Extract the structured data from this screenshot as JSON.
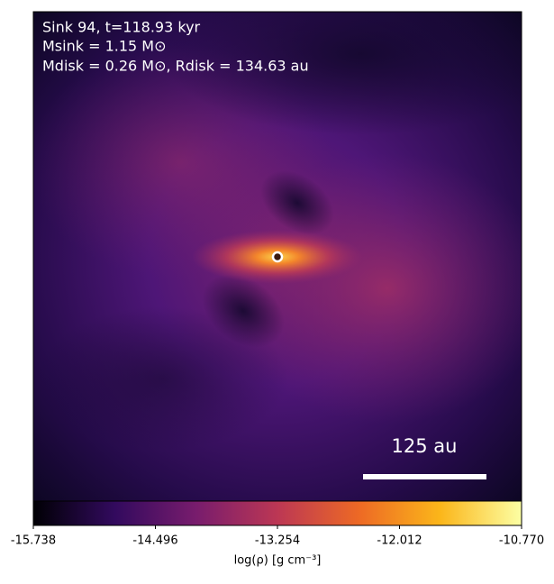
{
  "chart_data": {
    "type": "heatmap",
    "annotations": [
      "Sink 94, t=118.93 kyr",
      "Msink = 1.15 M⊙",
      "Mdisk = 0.26 M⊙, Rdisk = 134.63 au"
    ],
    "scale_bar_label": "125 au",
    "colorbar_label": "log(ρ) [g cm⁻³]",
    "clim": [
      -15.738,
      {
        "value": -10.77,
        "label": "-10.770"
      }
    ],
    "cticks": [
      -15.738,
      -14.496,
      -13.254,
      -12.012,
      {
        "value": -10.77,
        "label": "-10.770"
      }
    ],
    "colormap": [
      "#000004",
      "#320a5e",
      "#781c6d",
      "#bc3754",
      "#ed6925",
      "#fbb61a",
      "#fcffa4"
    ]
  }
}
